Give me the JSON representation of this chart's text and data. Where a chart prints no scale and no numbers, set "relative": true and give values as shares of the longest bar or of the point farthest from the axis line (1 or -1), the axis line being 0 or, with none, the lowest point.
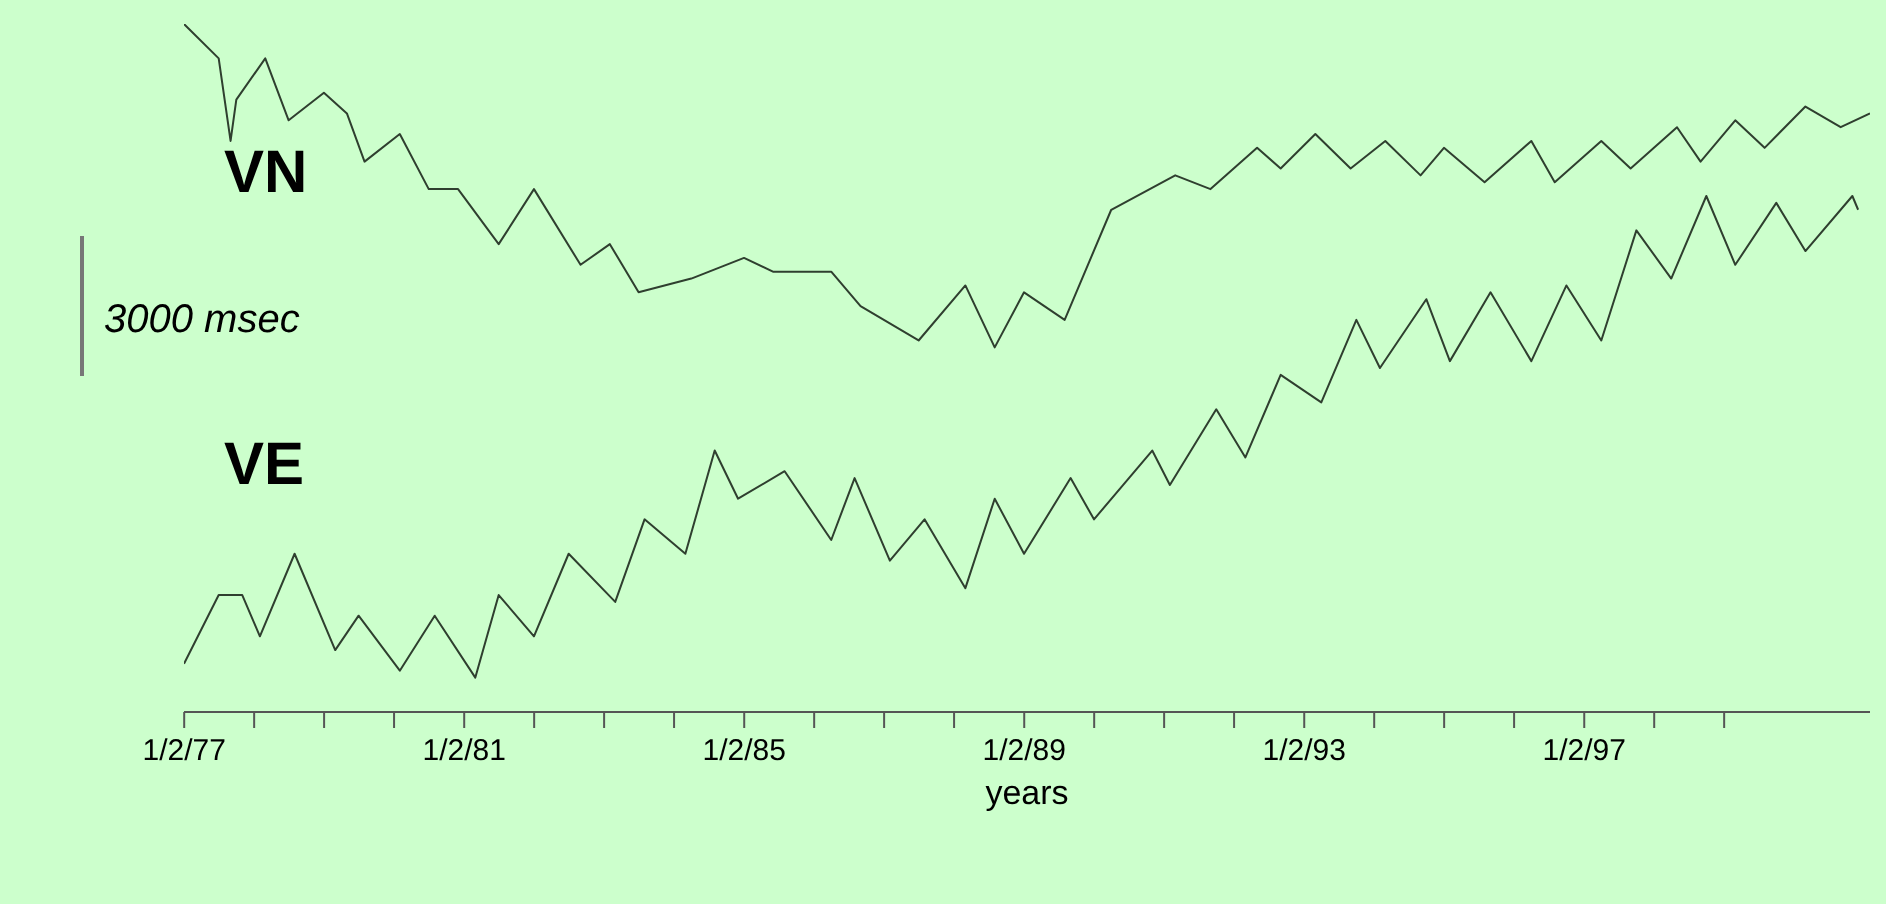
{
  "chart_data": {
    "type": "line",
    "xlabel": "years",
    "relative": true,
    "xlim": [
      "1977-01",
      "2001-02"
    ],
    "xticks": [
      {
        "value": "1977-01-02",
        "label": "1/2/77"
      },
      {
        "value": "1978-01-02",
        "label": null
      },
      {
        "value": "1979-01-02",
        "label": null
      },
      {
        "value": "1980-01-02",
        "label": null
      },
      {
        "value": "1981-01-02",
        "label": "1/2/81"
      },
      {
        "value": "1982-01-02",
        "label": null
      },
      {
        "value": "1983-01-02",
        "label": null
      },
      {
        "value": "1984-01-02",
        "label": null
      },
      {
        "value": "1985-01-02",
        "label": "1/2/85"
      },
      {
        "value": "1986-01-02",
        "label": null
      },
      {
        "value": "1987-01-02",
        "label": null
      },
      {
        "value": "1988-01-02",
        "label": null
      },
      {
        "value": "1989-01-02",
        "label": "1/2/89"
      },
      {
        "value": "1990-01-02",
        "label": null
      },
      {
        "value": "1991-01-02",
        "label": null
      },
      {
        "value": "1992-01-02",
        "label": null
      },
      {
        "value": "1993-01-02",
        "label": "1/2/93"
      },
      {
        "value": "1994-01-02",
        "label": null
      },
      {
        "value": "1995-01-02",
        "label": null
      },
      {
        "value": "1996-01-02",
        "label": null
      },
      {
        "value": "1997-01-02",
        "label": "1/2/97"
      },
      {
        "value": "1998-01-02",
        "label": null
      },
      {
        "value": "1999-01-02",
        "label": null
      }
    ],
    "annotations": [
      "3000 msec"
    ],
    "series": [
      {
        "name": "VN",
        "color": "#2f3f2f",
        "x": [
          "1977-01",
          "1977-07",
          "1977-09",
          "1977-10",
          "1978-03",
          "1978-07",
          "1979-01",
          "1979-05",
          "1979-08",
          "1980-02",
          "1980-07",
          "1980-12",
          "1981-07",
          "1982-01",
          "1982-09",
          "1983-02",
          "1983-07",
          "1984-04",
          "1985-01",
          "1985-06",
          "1986-04",
          "1986-09",
          "1987-07",
          "1988-03",
          "1988-08",
          "1989-01",
          "1989-08",
          "1990-04",
          "1991-03",
          "1991-09",
          "1992-05",
          "1992-09",
          "1993-03",
          "1993-09",
          "1994-03",
          "1994-09",
          "1995-01",
          "1995-08",
          "1996-04",
          "1996-08",
          "1997-04",
          "1997-09",
          "1998-05",
          "1998-09",
          "1999-03",
          "1999-08",
          "2000-03",
          "2000-09",
          "2001-02"
        ],
        "values": [
          1.0,
          0.95,
          0.83,
          0.89,
          0.95,
          0.86,
          0.9,
          0.87,
          0.8,
          0.84,
          0.76,
          0.76,
          0.68,
          0.76,
          0.65,
          0.68,
          0.61,
          0.63,
          0.66,
          0.64,
          0.64,
          0.59,
          0.54,
          0.62,
          0.53,
          0.61,
          0.57,
          0.73,
          0.78,
          0.76,
          0.82,
          0.79,
          0.84,
          0.79,
          0.83,
          0.78,
          0.82,
          0.77,
          0.83,
          0.77,
          0.83,
          0.79,
          0.85,
          0.8,
          0.86,
          0.82,
          0.88,
          0.85,
          0.87
        ]
      },
      {
        "name": "VE",
        "color": "#2f3f2f",
        "x": [
          "1977-01",
          "1977-07",
          "1977-11",
          "1978-02",
          "1978-08",
          "1979-03",
          "1979-07",
          "1980-02",
          "1980-08",
          "1981-03",
          "1981-07",
          "1982-01",
          "1982-07",
          "1983-03",
          "1983-08",
          "1984-03",
          "1984-08",
          "1984-12",
          "1985-08",
          "1986-04",
          "1986-08",
          "1987-02",
          "1987-08",
          "1988-03",
          "1988-08",
          "1989-01",
          "1989-09",
          "1990-01",
          "1990-11",
          "1991-02",
          "1991-10",
          "1992-03",
          "1992-09",
          "1993-04",
          "1993-10",
          "1994-02",
          "1994-10",
          "1995-02",
          "1995-09",
          "1996-04",
          "1996-10",
          "1997-04",
          "1997-10",
          "1998-04",
          "1998-10",
          "1999-03",
          "1999-10",
          "2000-03",
          "2000-11",
          "2000-12"
        ],
        "values": [
          0.07,
          0.17,
          0.17,
          0.11,
          0.23,
          0.09,
          0.14,
          0.06,
          0.14,
          0.05,
          0.17,
          0.11,
          0.23,
          0.16,
          0.28,
          0.23,
          0.38,
          0.31,
          0.35,
          0.25,
          0.34,
          0.22,
          0.28,
          0.18,
          0.31,
          0.23,
          0.34,
          0.28,
          0.38,
          0.33,
          0.44,
          0.37,
          0.49,
          0.45,
          0.57,
          0.5,
          0.6,
          0.51,
          0.61,
          0.51,
          0.62,
          0.54,
          0.7,
          0.63,
          0.75,
          0.65,
          0.74,
          0.67,
          0.75,
          0.73
        ]
      }
    ]
  }
}
